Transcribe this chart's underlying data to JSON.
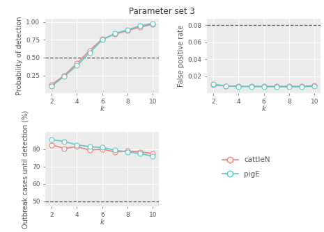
{
  "title": "Parameter set 3",
  "k": [
    2,
    3,
    4,
    5,
    6,
    7,
    8,
    9,
    10
  ],
  "cattle_pod": [
    0.12,
    0.25,
    0.42,
    0.6,
    0.76,
    0.83,
    0.88,
    0.93,
    0.97
  ],
  "pig_pod": [
    0.1,
    0.24,
    0.39,
    0.57,
    0.75,
    0.84,
    0.89,
    0.95,
    0.98
  ],
  "cattle_fpr": [
    0.0095,
    0.0085,
    0.008,
    0.008,
    0.008,
    0.008,
    0.008,
    0.008,
    0.0088
  ],
  "pig_fpr": [
    0.0105,
    0.0085,
    0.0078,
    0.0078,
    0.0077,
    0.0075,
    0.0075,
    0.0077,
    0.008
  ],
  "cattle_obd": [
    82.5,
    80.5,
    81.5,
    79.5,
    80.0,
    78.5,
    79.0,
    78.5,
    77.5
  ],
  "pig_obd": [
    85.5,
    84.5,
    82.5,
    81.5,
    81.0,
    79.5,
    78.5,
    77.5,
    76.0
  ],
  "cattle_color": "#f08080",
  "pig_color": "#5bc8c8",
  "bg_color": "#ebebeb",
  "pod_hline": 0.5,
  "fpr_hline": 0.08,
  "obd_hline": 50,
  "pod_ylim": [
    0.0,
    1.05
  ],
  "fpr_ylim": [
    0.0,
    0.088
  ],
  "obd_ylim": [
    47,
    90
  ],
  "pod_yticks": [
    0.25,
    0.5,
    0.75,
    1.0
  ],
  "fpr_yticks": [
    0.02,
    0.04,
    0.06,
    0.08
  ],
  "obd_yticks": [
    50,
    60,
    70,
    80
  ],
  "pod_ylabel": "Probability of detection",
  "fpr_ylabel": "False positive rate",
  "obd_ylabel": "Outbreak cases until detection (%)",
  "xlabel": "k",
  "legend_labels": [
    "cattleN",
    "pigE"
  ],
  "marker": "o",
  "markersize": 5,
  "linewidth": 1.2,
  "title_fontsize": 8.5,
  "axis_fontsize": 7,
  "tick_fontsize": 6.5,
  "legend_fontsize": 7.5
}
